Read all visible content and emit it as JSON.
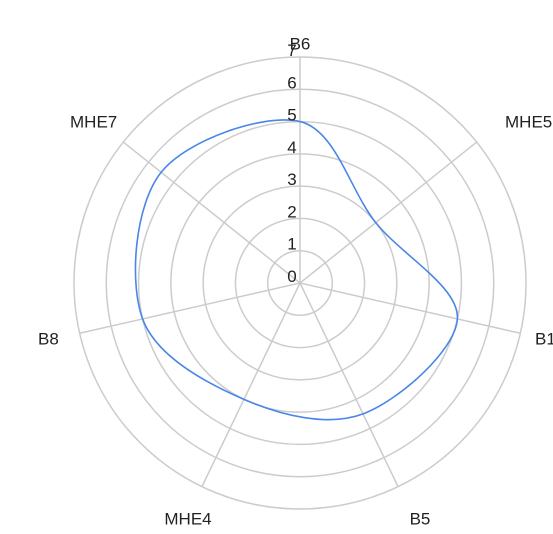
{
  "chart_data": {
    "type": "radar",
    "title": "",
    "axes": [
      "B6",
      "MHE5",
      "B1",
      "B5",
      "MHE4",
      "B8",
      "MHE7"
    ],
    "rlim": [
      0,
      7
    ],
    "ticks": [
      0,
      1,
      2,
      3,
      4,
      5,
      6,
      7
    ],
    "grid": true,
    "legend": "none",
    "series": [
      {
        "name": "",
        "values": [
          5.0,
          3.0,
          5.0,
          4.5,
          4.0,
          5.0,
          5.5
        ],
        "color": "#4a86e8"
      }
    ],
    "colors": {
      "grid": "#cccccc",
      "text": "#222222"
    }
  }
}
